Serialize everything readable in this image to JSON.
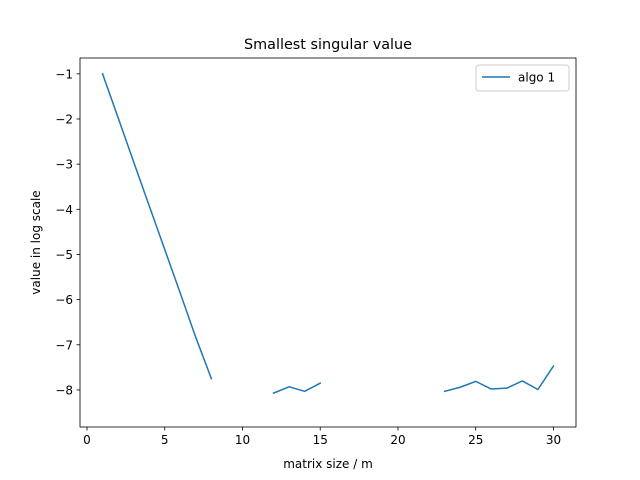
{
  "chart_data": {
    "type": "line",
    "title": "Smallest singular value",
    "xlabel": "matrix size / m",
    "ylabel": "value in log scale",
    "xlim": [
      -0.45,
      31.45
    ],
    "ylim": [
      -8.82,
      -0.65
    ],
    "xticks": [
      0,
      5,
      10,
      15,
      20,
      25,
      30
    ],
    "yticks": [
      -1,
      -2,
      -3,
      -4,
      -5,
      -6,
      -7,
      -8
    ],
    "xtick_labels": [
      "0",
      "5",
      "10",
      "15",
      "20",
      "25",
      "30"
    ],
    "ytick_labels": [
      "−1",
      "−2",
      "−3",
      "−4",
      "−5",
      "−6",
      "−7",
      "−8"
    ],
    "grid": false,
    "legend": {
      "position": "top-right"
    },
    "series": [
      {
        "name": "algo 1",
        "color": "#1f77b4",
        "segments": [
          [
            [
              1,
              -1.0
            ],
            [
              2,
              -1.97
            ],
            [
              3,
              -2.95
            ],
            [
              4,
              -3.92
            ],
            [
              5,
              -4.89
            ],
            [
              6,
              -5.86
            ],
            [
              7,
              -6.84
            ],
            [
              8,
              -7.75
            ]
          ],
          [
            [
              12,
              -8.07
            ],
            [
              13,
              -7.93
            ],
            [
              14,
              -8.03
            ],
            [
              15,
              -7.85
            ]
          ],
          [
            [
              23,
              -8.03
            ],
            [
              24,
              -7.94
            ],
            [
              25,
              -7.81
            ],
            [
              26,
              -7.98
            ],
            [
              27,
              -7.96
            ],
            [
              28,
              -7.8
            ],
            [
              29,
              -7.99
            ],
            [
              30,
              -7.47
            ]
          ]
        ]
      }
    ]
  }
}
